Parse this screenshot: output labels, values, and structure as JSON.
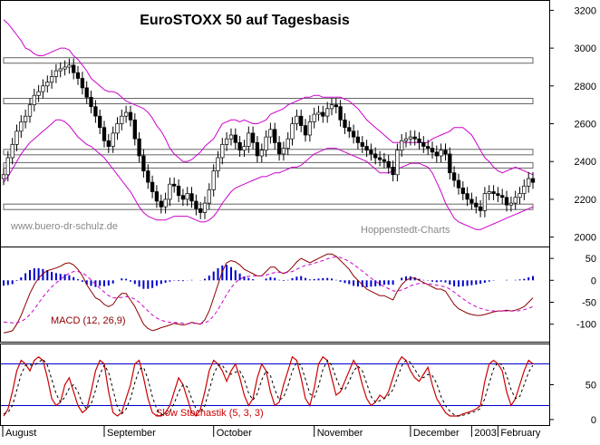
{
  "chart_data": [
    {
      "type": "candlestick",
      "title": "EuroSTOXX 50 auf Tagesbasis",
      "watermark_left": "www.buero-dr-schulz.de",
      "watermark_right": "Hoppenstedt-Charts",
      "ylim": [
        1950,
        3250
      ],
      "yticks": [
        2000,
        2200,
        2400,
        2600,
        2800,
        3000,
        3200
      ],
      "support_resistance_levels": [
        2935,
        2720,
        2450,
        2380,
        2160
      ],
      "close_series": [
        2330,
        2420,
        2490,
        2560,
        2610,
        2640,
        2700,
        2750,
        2770,
        2800,
        2820,
        2850,
        2880,
        2890,
        2900,
        2910,
        2870,
        2840,
        2790,
        2740,
        2690,
        2640,
        2580,
        2510,
        2480,
        2550,
        2600,
        2640,
        2660,
        2620,
        2520,
        2430,
        2350,
        2290,
        2240,
        2190,
        2160,
        2200,
        2280,
        2270,
        2220,
        2200,
        2230,
        2190,
        2150,
        2130,
        2180,
        2250,
        2350,
        2420,
        2490,
        2520,
        2540,
        2500,
        2460,
        2480,
        2550,
        2500,
        2430,
        2460,
        2530,
        2570,
        2500,
        2440,
        2470,
        2520,
        2600,
        2640,
        2590,
        2540,
        2610,
        2650,
        2660,
        2640,
        2680,
        2700,
        2690,
        2620,
        2580,
        2560,
        2530,
        2500,
        2480,
        2460,
        2440,
        2420,
        2410,
        2400,
        2370,
        2330,
        2460,
        2510,
        2520,
        2530,
        2520,
        2500,
        2480,
        2470,
        2450,
        2430,
        2460,
        2440,
        2340,
        2300,
        2260,
        2230,
        2200,
        2180,
        2160,
        2140,
        2230,
        2240,
        2230,
        2220,
        2210,
        2170,
        2180,
        2210,
        2230,
        2270,
        2310,
        2290
      ],
      "bollinger_upper": [
        3150,
        3130,
        3100,
        3070,
        3040,
        3000,
        2990,
        2970,
        2960,
        2960,
        2970,
        2980,
        2990,
        3000,
        3000,
        2990,
        2960,
        2940,
        2910,
        2880,
        2840,
        2820,
        2800,
        2780,
        2770,
        2770,
        2760,
        2740,
        2720,
        2710,
        2700,
        2690,
        2680,
        2660,
        2630,
        2590,
        2560,
        2520,
        2470,
        2440,
        2420,
        2400,
        2400,
        2410,
        2430,
        2450,
        2480,
        2500,
        2520,
        2560,
        2600,
        2610,
        2620,
        2620,
        2610,
        2620,
        2610,
        2600,
        2600,
        2610,
        2620,
        2650,
        2660,
        2670,
        2680,
        2700,
        2710,
        2720,
        2730,
        2740,
        2740,
        2750,
        2750,
        2740,
        2740,
        2740,
        2740,
        2740,
        2730,
        2720,
        2700,
        2680,
        2650,
        2620,
        2600,
        2580,
        2560,
        2540,
        2520,
        2500,
        2500,
        2500,
        2500,
        2500,
        2500,
        2500,
        2500,
        2500,
        2520,
        2530,
        2540,
        2550,
        2560,
        2580,
        2580,
        2580,
        2560,
        2540,
        2500,
        2460,
        2420,
        2400,
        2370,
        2350,
        2340,
        2350,
        2360,
        2370,
        2360,
        2350,
        2340,
        2330
      ],
      "bollinger_lower": [
        2290,
        2320,
        2360,
        2400,
        2440,
        2470,
        2500,
        2520,
        2540,
        2560,
        2580,
        2600,
        2620,
        2620,
        2610,
        2590,
        2560,
        2530,
        2510,
        2490,
        2480,
        2460,
        2440,
        2420,
        2390,
        2360,
        2330,
        2300,
        2270,
        2240,
        2200,
        2160,
        2130,
        2110,
        2100,
        2090,
        2090,
        2090,
        2100,
        2110,
        2110,
        2110,
        2110,
        2100,
        2090,
        2080,
        2080,
        2090,
        2110,
        2140,
        2180,
        2210,
        2240,
        2260,
        2270,
        2280,
        2290,
        2300,
        2310,
        2320,
        2320,
        2330,
        2340,
        2340,
        2350,
        2360,
        2370,
        2370,
        2380,
        2400,
        2420,
        2440,
        2450,
        2460,
        2470,
        2470,
        2470,
        2460,
        2450,
        2440,
        2430,
        2420,
        2410,
        2400,
        2380,
        2360,
        2340,
        2340,
        2340,
        2350,
        2360,
        2370,
        2380,
        2390,
        2390,
        2390,
        2380,
        2370,
        2340,
        2290,
        2240,
        2180,
        2140,
        2100,
        2080,
        2070,
        2060,
        2050,
        2040,
        2040,
        2050,
        2060,
        2070,
        2080,
        2090,
        2100,
        2110,
        2120,
        2130,
        2140,
        2150,
        2160
      ]
    },
    {
      "type": "line",
      "indicator": "MACD",
      "label": "MACD (12, 26,9)",
      "ylim": [
        -140,
        75
      ],
      "yticks": [
        50,
        0,
        -50,
        -100
      ],
      "macd": [
        -120,
        -118,
        -115,
        -100,
        -80,
        -55,
        -30,
        -10,
        5,
        15,
        22,
        25,
        28,
        32,
        38,
        40,
        35,
        25,
        10,
        -10,
        -25,
        -40,
        -45,
        -55,
        -60,
        -55,
        -40,
        -30,
        -30,
        -45,
        -60,
        -80,
        -100,
        -110,
        -115,
        -112,
        -108,
        -105,
        -102,
        -98,
        -100,
        -102,
        -100,
        -96,
        -98,
        -100,
        -90,
        -70,
        -40,
        -10,
        20,
        40,
        45,
        42,
        35,
        25,
        20,
        15,
        10,
        10,
        20,
        30,
        30,
        20,
        15,
        20,
        30,
        42,
        50,
        45,
        40,
        45,
        50,
        55,
        60,
        60,
        55,
        45,
        35,
        25,
        10,
        0,
        -10,
        -20,
        -25,
        -30,
        -35,
        -35,
        -40,
        -45,
        -25,
        -10,
        0,
        5,
        5,
        0,
        -5,
        -10,
        -15,
        -20,
        -20,
        -25,
        -40,
        -55,
        -65,
        -70,
        -75,
        -78,
        -80,
        -80,
        -78,
        -75,
        -72,
        -70,
        -70,
        -68,
        -70,
        -68,
        -65,
        -60,
        -50,
        -40
      ],
      "signal": [
        -95,
        -96,
        -97,
        -97,
        -94,
        -88,
        -78,
        -66,
        -52,
        -38,
        -26,
        -15,
        -6,
        2,
        10,
        16,
        20,
        20,
        17,
        10,
        1,
        -9,
        -18,
        -27,
        -35,
        -40,
        -40,
        -39,
        -37,
        -39,
        -43,
        -50,
        -60,
        -70,
        -79,
        -86,
        -91,
        -94,
        -96,
        -96,
        -97,
        -98,
        -99,
        -98,
        -98,
        -99,
        -97,
        -92,
        -81,
        -67,
        -50,
        -32,
        -17,
        -5,
        3,
        7,
        9,
        10,
        10,
        10,
        12,
        15,
        18,
        18,
        18,
        18,
        20,
        25,
        30,
        34,
        36,
        39,
        42,
        45,
        49,
        52,
        53,
        52,
        48,
        43,
        36,
        29,
        21,
        13,
        5,
        -2,
        -9,
        -14,
        -19,
        -24,
        -25,
        -22,
        -18,
        -13,
        -9,
        -7,
        -7,
        -8,
        -9,
        -11,
        -13,
        -15,
        -20,
        -27,
        -35,
        -42,
        -49,
        -55,
        -60,
        -64,
        -67,
        -69,
        -70,
        -70,
        -70,
        -70,
        -70,
        -70,
        -69,
        -67,
        -64,
        -60
      ]
    },
    {
      "type": "line",
      "indicator": "Slow Stochastik",
      "label": "Slow Stochastik (5, 3, 3)",
      "ylim": [
        -8,
        108
      ],
      "yticks": [
        50,
        0
      ],
      "reference_lines": [
        80,
        20
      ],
      "k": [
        5,
        15,
        40,
        70,
        85,
        80,
        70,
        85,
        90,
        85,
        60,
        30,
        20,
        25,
        50,
        60,
        40,
        20,
        10,
        15,
        40,
        70,
        85,
        80,
        40,
        10,
        5,
        10,
        30,
        50,
        80,
        85,
        60,
        30,
        10,
        5,
        5,
        10,
        20,
        40,
        60,
        50,
        30,
        10,
        5,
        15,
        40,
        70,
        85,
        80,
        70,
        55,
        70,
        80,
        60,
        35,
        20,
        30,
        60,
        80,
        70,
        40,
        20,
        25,
        50,
        70,
        90,
        85,
        60,
        30,
        20,
        45,
        80,
        90,
        85,
        60,
        35,
        40,
        55,
        70,
        85,
        75,
        50,
        30,
        20,
        25,
        35,
        30,
        40,
        60,
        80,
        90,
        85,
        70,
        60,
        55,
        65,
        75,
        50,
        30,
        20,
        10,
        5,
        5,
        5,
        8,
        10,
        12,
        15,
        20,
        55,
        80,
        85,
        80,
        70,
        40,
        20,
        30,
        50,
        70,
        85,
        80
      ],
      "d": [
        8,
        10,
        20,
        42,
        65,
        78,
        78,
        78,
        82,
        87,
        78,
        58,
        37,
        25,
        32,
        45,
        50,
        40,
        23,
        15,
        22,
        42,
        65,
        78,
        68,
        43,
        18,
        8,
        15,
        30,
        53,
        72,
        75,
        58,
        33,
        15,
        7,
        7,
        12,
        23,
        40,
        50,
        47,
        30,
        15,
        10,
        20,
        42,
        65,
        78,
        78,
        68,
        65,
        68,
        70,
        58,
        38,
        28,
        37,
        57,
        70,
        63,
        43,
        28,
        32,
        48,
        70,
        82,
        78,
        58,
        37,
        32,
        48,
        72,
        85,
        78,
        60,
        45,
        43,
        55,
        70,
        77,
        70,
        52,
        33,
        25,
        27,
        30,
        35,
        43,
        60,
        77,
        85,
        82,
        72,
        62,
        60,
        65,
        63,
        52,
        33,
        20,
        12,
        7,
        5,
        6,
        8,
        10,
        12,
        16,
        30,
        52,
        73,
        82,
        78,
        63,
        43,
        30,
        33,
        50,
        68,
        78
      ]
    }
  ],
  "x_axis": {
    "months": [
      "August",
      "September",
      "October",
      "November",
      "December",
      "2003",
      "February"
    ]
  }
}
